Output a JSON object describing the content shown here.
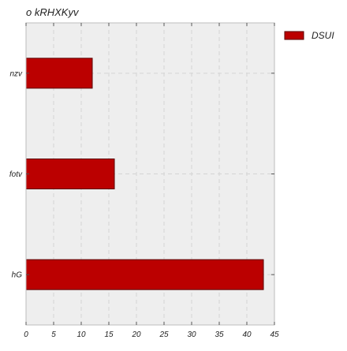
{
  "chart_data": {
    "type": "bar",
    "orientation": "horizontal",
    "title": "o kRHXKyv",
    "xlabel": "",
    "ylabel": "",
    "categories": [
      "nzv",
      "fotv",
      "hG"
    ],
    "series": [
      {
        "name": "DSUI",
        "values": [
          12,
          16,
          43
        ],
        "color": "#bb0000"
      }
    ],
    "xlim": [
      0,
      45
    ],
    "xticks": [
      0,
      5,
      10,
      15,
      20,
      25,
      30,
      35,
      40,
      45
    ],
    "grid": true,
    "legend_position": "outside-top-right",
    "colors": {
      "plot_background": "#eeeeee",
      "grid": "#d4d4d4",
      "bar_fill": "#bb0000",
      "bar_edge": "#5a0000",
      "axis_frame": "#bcbcbc",
      "text": "#222222"
    }
  }
}
